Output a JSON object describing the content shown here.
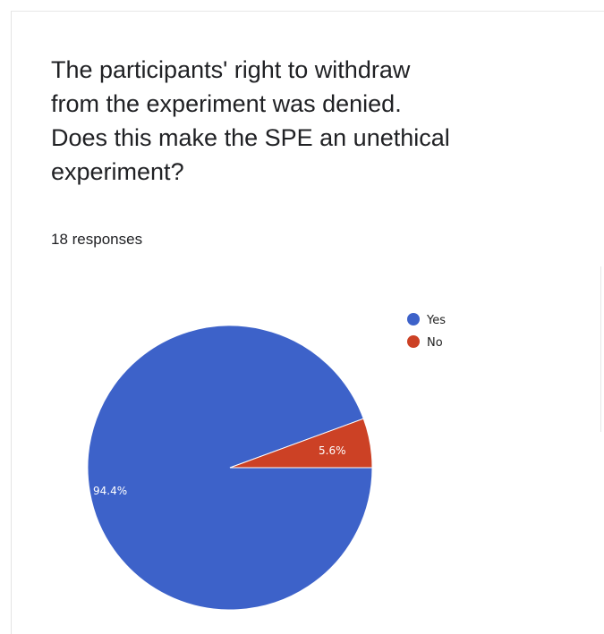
{
  "question": "The participants' right to withdraw\nfrom the experiment was denied.\nDoes this make the SPE an unethical\nexperiment?",
  "responses": "18 responses",
  "chart_data": {
    "type": "pie",
    "slices": [
      {
        "label": "Yes",
        "value": 94.4,
        "color": "#3d62c9"
      },
      {
        "label": "No",
        "value": 5.6,
        "color": "#cc4125"
      }
    ],
    "data_labels": [
      "94.4%",
      "5.6%"
    ],
    "legend": [
      "Yes",
      "No"
    ],
    "legend_position": "right"
  }
}
